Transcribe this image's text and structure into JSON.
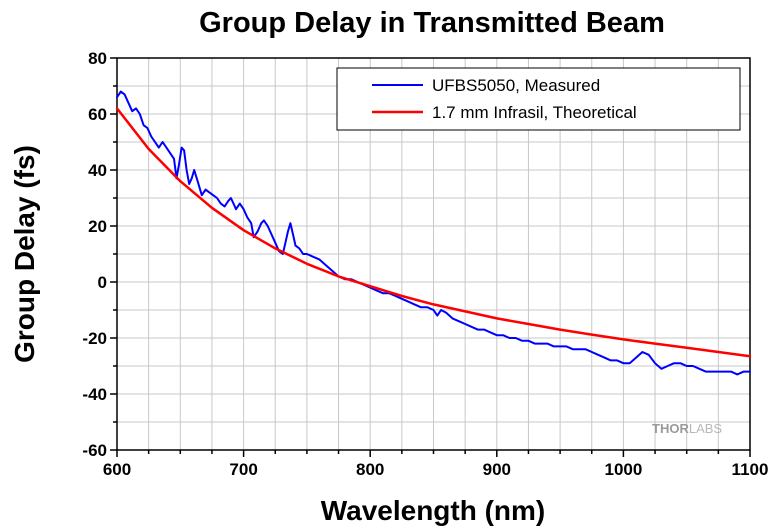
{
  "chart_data": {
    "type": "line",
    "title": "Group Delay in Transmitted Beam",
    "xlabel": "Wavelength (nm)",
    "ylabel": "Group Delay (fs)",
    "xlim": [
      600,
      1100
    ],
    "ylim": [
      -60,
      80
    ],
    "x_ticks": [
      600,
      700,
      800,
      900,
      1000,
      1100
    ],
    "y_ticks": [
      -60,
      -40,
      -20,
      0,
      20,
      40,
      60,
      80
    ],
    "grid": true,
    "legend_position": "top-right",
    "series": [
      {
        "name": "UFBS5050, Measured",
        "color": "#0000ff",
        "points": [
          [
            600,
            66
          ],
          [
            603,
            68
          ],
          [
            606,
            67
          ],
          [
            609,
            64
          ],
          [
            612,
            61
          ],
          [
            615,
            62
          ],
          [
            618,
            60
          ],
          [
            621,
            56
          ],
          [
            624,
            55
          ],
          [
            627,
            52
          ],
          [
            630,
            50
          ],
          [
            633,
            48
          ],
          [
            636,
            50
          ],
          [
            639,
            48
          ],
          [
            642,
            46
          ],
          [
            645,
            44
          ],
          [
            647,
            37
          ],
          [
            649,
            42
          ],
          [
            651,
            48
          ],
          [
            653,
            47
          ],
          [
            655,
            40
          ],
          [
            657,
            35
          ],
          [
            659,
            37
          ],
          [
            661,
            40
          ],
          [
            663,
            37
          ],
          [
            665,
            34
          ],
          [
            667,
            31
          ],
          [
            670,
            33
          ],
          [
            673,
            32
          ],
          [
            676,
            31
          ],
          [
            679,
            30
          ],
          [
            682,
            28
          ],
          [
            685,
            27
          ],
          [
            688,
            29
          ],
          [
            690,
            30
          ],
          [
            692,
            28
          ],
          [
            694,
            26
          ],
          [
            697,
            28
          ],
          [
            700,
            26
          ],
          [
            703,
            23
          ],
          [
            706,
            21
          ],
          [
            708,
            16
          ],
          [
            711,
            18
          ],
          [
            714,
            21
          ],
          [
            716,
            22
          ],
          [
            719,
            20
          ],
          [
            722,
            17
          ],
          [
            725,
            14
          ],
          [
            728,
            11
          ],
          [
            731,
            10
          ],
          [
            733,
            14
          ],
          [
            735,
            18
          ],
          [
            737,
            21
          ],
          [
            739,
            17
          ],
          [
            741,
            13
          ],
          [
            744,
            12
          ],
          [
            747,
            10
          ],
          [
            750,
            10
          ],
          [
            755,
            9
          ],
          [
            760,
            8
          ],
          [
            765,
            6
          ],
          [
            770,
            4
          ],
          [
            775,
            2
          ],
          [
            780,
            1
          ],
          [
            785,
            1
          ],
          [
            790,
            0
          ],
          [
            795,
            -1
          ],
          [
            800,
            -2
          ],
          [
            805,
            -3
          ],
          [
            810,
            -4
          ],
          [
            815,
            -4
          ],
          [
            820,
            -5
          ],
          [
            825,
            -6
          ],
          [
            830,
            -7
          ],
          [
            835,
            -8
          ],
          [
            840,
            -9
          ],
          [
            845,
            -9
          ],
          [
            850,
            -10
          ],
          [
            853,
            -12
          ],
          [
            856,
            -10
          ],
          [
            860,
            -11
          ],
          [
            865,
            -13
          ],
          [
            870,
            -14
          ],
          [
            875,
            -15
          ],
          [
            880,
            -16
          ],
          [
            885,
            -17
          ],
          [
            890,
            -17
          ],
          [
            895,
            -18
          ],
          [
            900,
            -19
          ],
          [
            905,
            -19
          ],
          [
            910,
            -20
          ],
          [
            915,
            -20
          ],
          [
            920,
            -21
          ],
          [
            925,
            -21
          ],
          [
            930,
            -22
          ],
          [
            935,
            -22
          ],
          [
            940,
            -22
          ],
          [
            945,
            -23
          ],
          [
            950,
            -23
          ],
          [
            955,
            -23
          ],
          [
            960,
            -24
          ],
          [
            965,
            -24
          ],
          [
            970,
            -24
          ],
          [
            975,
            -25
          ],
          [
            980,
            -26
          ],
          [
            985,
            -27
          ],
          [
            990,
            -28
          ],
          [
            995,
            -28
          ],
          [
            1000,
            -29
          ],
          [
            1005,
            -29
          ],
          [
            1010,
            -27
          ],
          [
            1015,
            -25
          ],
          [
            1020,
            -26
          ],
          [
            1025,
            -29
          ],
          [
            1030,
            -31
          ],
          [
            1035,
            -30
          ],
          [
            1040,
            -29
          ],
          [
            1045,
            -29
          ],
          [
            1050,
            -30
          ],
          [
            1055,
            -30
          ],
          [
            1060,
            -31
          ],
          [
            1065,
            -32
          ],
          [
            1070,
            -32
          ],
          [
            1075,
            -32
          ],
          [
            1080,
            -32
          ],
          [
            1085,
            -32
          ],
          [
            1090,
            -33
          ],
          [
            1095,
            -32
          ],
          [
            1100,
            -32
          ]
        ]
      },
      {
        "name": "1.7 mm Infrasil, Theoretical",
        "color": "#ff0000",
        "points": [
          [
            600,
            62
          ],
          [
            625,
            47.5
          ],
          [
            650,
            36
          ],
          [
            675,
            26.5
          ],
          [
            700,
            18.5
          ],
          [
            725,
            12
          ],
          [
            750,
            6.5
          ],
          [
            775,
            2
          ],
          [
            800,
            -1.5
          ],
          [
            825,
            -5
          ],
          [
            850,
            -8
          ],
          [
            875,
            -10.5
          ],
          [
            900,
            -13
          ],
          [
            925,
            -15
          ],
          [
            950,
            -17
          ],
          [
            975,
            -18.8
          ],
          [
            1000,
            -20.5
          ],
          [
            1025,
            -22
          ],
          [
            1050,
            -23.5
          ],
          [
            1075,
            -25
          ],
          [
            1100,
            -26.5
          ]
        ]
      }
    ]
  },
  "watermark": {
    "brand_bold": "THOR",
    "brand_light": "LABS"
  }
}
